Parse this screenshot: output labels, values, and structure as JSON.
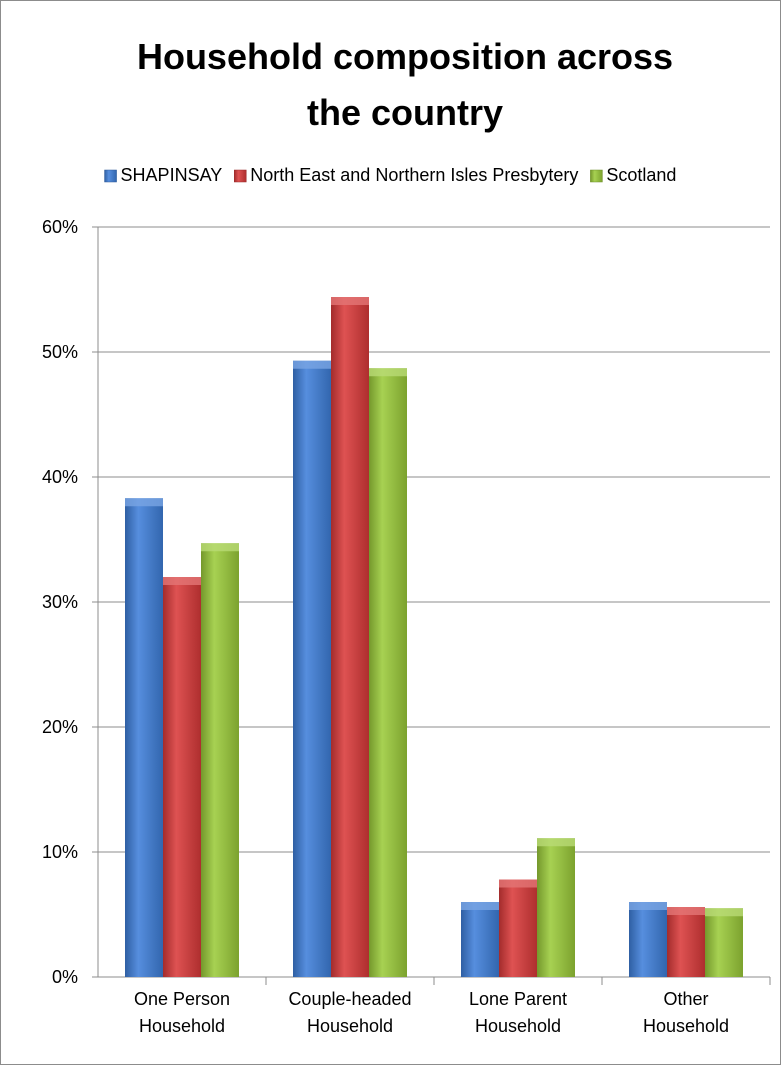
{
  "chart_data": {
    "type": "bar",
    "title_lines": [
      "Household composition across",
      "the country"
    ],
    "categories": [
      [
        "One Person",
        "Household"
      ],
      [
        "Couple-headed",
        "Household"
      ],
      [
        "Lone Parent",
        "Household"
      ],
      [
        "Other",
        "Household"
      ]
    ],
    "series": [
      {
        "name": "SHAPINSAY",
        "color": "#3f7fd9",
        "values": [
          38.3,
          49.3,
          6.0,
          6.0
        ]
      },
      {
        "name": "North East and Northern Isles Presbytery",
        "color": "#d93a3a",
        "values": [
          32.0,
          54.4,
          7.8,
          5.6
        ]
      },
      {
        "name": "Scotland",
        "color": "#9bcb3a",
        "values": [
          34.7,
          48.7,
          11.1,
          5.5
        ]
      }
    ],
    "ylim": [
      0,
      60
    ],
    "yticks": [
      0,
      10,
      20,
      30,
      40,
      50,
      60
    ],
    "ytick_labels": [
      "0%",
      "10%",
      "20%",
      "30%",
      "40%",
      "50%",
      "60%"
    ],
    "grid": true,
    "legend_position": "top"
  }
}
